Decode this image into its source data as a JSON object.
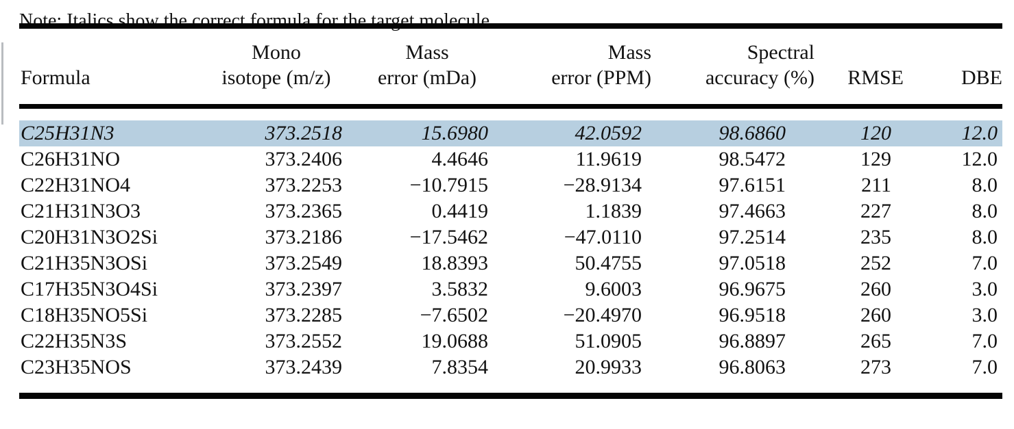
{
  "table": {
    "columns": [
      {
        "id": "formula",
        "lines": [
          "Formula"
        ]
      },
      {
        "id": "mono_isotope_mz",
        "lines": [
          "Mono",
          "isotope (m/z)"
        ]
      },
      {
        "id": "mass_error_mda",
        "lines": [
          "Mass",
          "error (mDa)"
        ]
      },
      {
        "id": "mass_error_ppm",
        "lines": [
          "Mass",
          "error (PPM)"
        ]
      },
      {
        "id": "spectral_accuracy",
        "lines": [
          "Spectral",
          "accuracy (%)"
        ]
      },
      {
        "id": "rmse",
        "lines": [
          "RMSE"
        ]
      },
      {
        "id": "dbe",
        "lines": [
          "DBE"
        ]
      }
    ],
    "rows": [
      {
        "highlighted": true,
        "formula": "C25H31N3",
        "mono_isotope_mz": "373.2518",
        "mass_error_mda": "15.6980",
        "mass_error_ppm": "42.0592",
        "spectral_accuracy": "98.6860",
        "rmse": "120",
        "dbe": "12.0"
      },
      {
        "highlighted": false,
        "formula": "C26H31NO",
        "mono_isotope_mz": "373.2406",
        "mass_error_mda": "4.4646",
        "mass_error_ppm": "11.9619",
        "spectral_accuracy": "98.5472",
        "rmse": "129",
        "dbe": "12.0"
      },
      {
        "highlighted": false,
        "formula": "C22H31NO4",
        "mono_isotope_mz": "373.2253",
        "mass_error_mda": "−10.7915",
        "mass_error_ppm": "−28.9134",
        "spectral_accuracy": "97.6151",
        "rmse": "211",
        "dbe": "8.0"
      },
      {
        "highlighted": false,
        "formula": "C21H31N3O3",
        "mono_isotope_mz": "373.2365",
        "mass_error_mda": "0.4419",
        "mass_error_ppm": "1.1839",
        "spectral_accuracy": "97.4663",
        "rmse": "227",
        "dbe": "8.0"
      },
      {
        "highlighted": false,
        "formula": "C20H31N3O2Si",
        "mono_isotope_mz": "373.2186",
        "mass_error_mda": "−17.5462",
        "mass_error_ppm": "−47.0110",
        "spectral_accuracy": "97.2514",
        "rmse": "235",
        "dbe": "8.0"
      },
      {
        "highlighted": false,
        "formula": "C21H35N3OSi",
        "mono_isotope_mz": "373.2549",
        "mass_error_mda": "18.8393",
        "mass_error_ppm": "50.4755",
        "spectral_accuracy": "97.0518",
        "rmse": "252",
        "dbe": "7.0"
      },
      {
        "highlighted": false,
        "formula": "C17H35N3O4Si",
        "mono_isotope_mz": "373.2397",
        "mass_error_mda": "3.5832",
        "mass_error_ppm": "9.6003",
        "spectral_accuracy": "96.9675",
        "rmse": "260",
        "dbe": "3.0"
      },
      {
        "highlighted": false,
        "formula": "C18H35NO5Si",
        "mono_isotope_mz": "373.2285",
        "mass_error_mda": "−7.6502",
        "mass_error_ppm": "−20.4970",
        "spectral_accuracy": "96.9518",
        "rmse": "260",
        "dbe": "3.0"
      },
      {
        "highlighted": false,
        "formula": "C22H35N3S",
        "mono_isotope_mz": "373.2552",
        "mass_error_mda": "19.0688",
        "mass_error_ppm": "51.0905",
        "spectral_accuracy": "96.8897",
        "rmse": "265",
        "dbe": "7.0"
      },
      {
        "highlighted": false,
        "formula": "C23H35NOS",
        "mono_isotope_mz": "373.2439",
        "mass_error_mda": "7.8354",
        "mass_error_ppm": "20.9933",
        "spectral_accuracy": "96.8063",
        "rmse": "273",
        "dbe": "7.0"
      }
    ],
    "note": "Note: Italics show the correct formula for the target molecule.",
    "colors": {
      "highlight_row_bg": "#b7cfe0",
      "rule": "#050505",
      "text": "#121212"
    }
  }
}
